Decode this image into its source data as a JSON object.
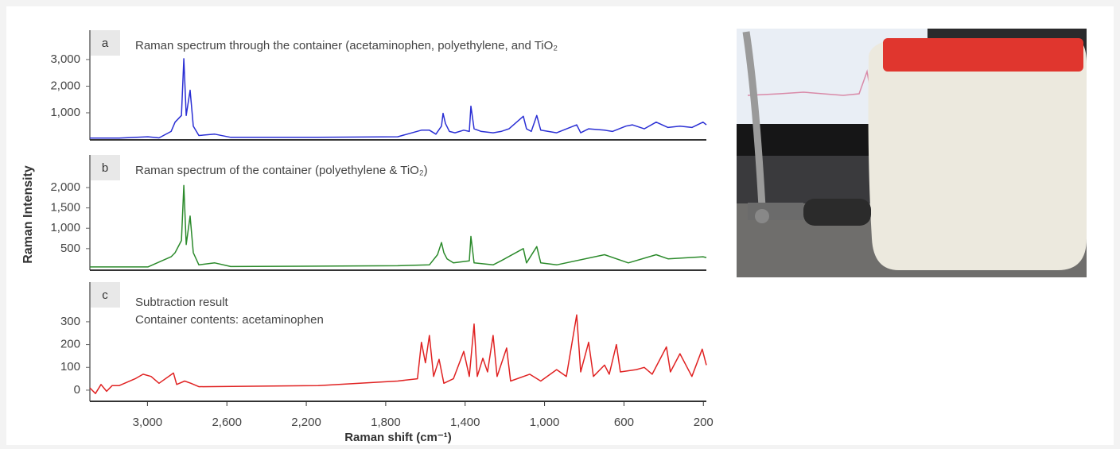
{
  "chart_data": [
    {
      "type": "line",
      "label": "a",
      "title": "Raman spectrum through the container (acetaminophen, polyethylene, and TiO₂",
      "color": "#2a2fd4",
      "xlim": [
        3290,
        185
      ],
      "ylim": [
        -15,
        4100
      ],
      "yticks": [
        {
          "value": 1000,
          "label": "1,000"
        },
        {
          "value": 2000,
          "label": "2,000"
        },
        {
          "value": 3000,
          "label": "3,000"
        }
      ],
      "x": [
        3290,
        3142,
        2998,
        2942,
        2881,
        2861,
        2829,
        2817,
        2805,
        2785,
        2769,
        2741,
        2661,
        2581,
        2140,
        1740,
        1620,
        1580,
        1547,
        1519,
        1511,
        1499,
        1479,
        1451,
        1407,
        1379,
        1371,
        1355,
        1319,
        1259,
        1219,
        1179,
        1107,
        1091,
        1067,
        1039,
        1019,
        939,
        838,
        818,
        778,
        698,
        658,
        590,
        558,
        498,
        438,
        378,
        318,
        258,
        202,
        185
      ],
      "values": [
        50,
        50,
        100,
        60,
        300,
        650,
        900,
        3030,
        900,
        1850,
        500,
        150,
        200,
        80,
        80,
        100,
        350,
        350,
        200,
        500,
        980,
        600,
        300,
        250,
        350,
        300,
        1250,
        400,
        300,
        250,
        300,
        400,
        870,
        400,
        300,
        900,
        350,
        250,
        550,
        250,
        400,
        350,
        300,
        500,
        550,
        400,
        650,
        450,
        500,
        450,
        650,
        550
      ]
    },
    {
      "type": "line",
      "label": "b",
      "title": "Raman spectrum of the container (polyethylene & TiO₂)",
      "color": "#2b8a2b",
      "ylabel": "Raman Intensity",
      "xlim": [
        3290,
        185
      ],
      "ylim": [
        -30,
        2800
      ],
      "yticks": [
        500,
        {
          "value": 1000,
          "label": "1,000"
        },
        {
          "value": 1500,
          "label": "1,500"
        },
        {
          "value": 2000,
          "label": "2,000"
        }
      ],
      "x": [
        3290,
        2998,
        2881,
        2861,
        2829,
        2817,
        2805,
        2785,
        2769,
        2741,
        2661,
        2581,
        1740,
        1580,
        1539,
        1519,
        1507,
        1491,
        1459,
        1379,
        1371,
        1355,
        1259,
        1219,
        1107,
        1091,
        1039,
        1019,
        939,
        698,
        578,
        438,
        378,
        202,
        185
      ],
      "values": [
        50,
        50,
        300,
        400,
        700,
        2050,
        600,
        1300,
        400,
        100,
        150,
        60,
        80,
        100,
        350,
        650,
        400,
        250,
        150,
        200,
        800,
        150,
        100,
        200,
        500,
        150,
        550,
        150,
        100,
        350,
        150,
        350,
        250,
        300,
        280
      ]
    },
    {
      "type": "line",
      "label": "c",
      "title": "Subtraction result",
      "subtitle": "Container contents: acetaminophen",
      "color": "#e02222",
      "xlabel": "Raman shift (cm⁻¹)",
      "xlim": [
        3290,
        185
      ],
      "ylim": [
        -49,
        474
      ],
      "xticks": [
        {
          "value": 3000,
          "label": "3,000"
        },
        {
          "value": 2600,
          "label": "2,600"
        },
        {
          "value": 2200,
          "label": "2,200"
        },
        {
          "value": 1800,
          "label": "1,800"
        },
        {
          "value": 1400,
          "label": "1,400"
        },
        {
          "value": 1000,
          "label": "1,000"
        },
        600,
        200
      ],
      "yticks": [
        0,
        100,
        200,
        300
      ],
      "x": [
        3290,
        3262,
        3234,
        3206,
        3178,
        3142,
        3062,
        3022,
        2982,
        2942,
        2869,
        2853,
        2813,
        2781,
        2741,
        2140,
        1740,
        1640,
        1620,
        1600,
        1580,
        1559,
        1531,
        1507,
        1459,
        1407,
        1379,
        1355,
        1339,
        1311,
        1287,
        1259,
        1239,
        1191,
        1171,
        1075,
        1019,
        939,
        890,
        838,
        818,
        778,
        754,
        698,
        674,
        638,
        618,
        538,
        498,
        458,
        386,
        366,
        318,
        258,
        206,
        185
      ],
      "values": [
        10,
        -15,
        25,
        -5,
        20,
        20,
        50,
        70,
        60,
        30,
        75,
        25,
        40,
        30,
        15,
        20,
        40,
        50,
        210,
        120,
        240,
        60,
        135,
        30,
        50,
        170,
        60,
        290,
        60,
        140,
        80,
        240,
        60,
        185,
        40,
        70,
        40,
        90,
        60,
        330,
        80,
        210,
        60,
        110,
        70,
        200,
        80,
        90,
        100,
        70,
        190,
        80,
        160,
        60,
        180,
        110
      ]
    }
  ]
}
